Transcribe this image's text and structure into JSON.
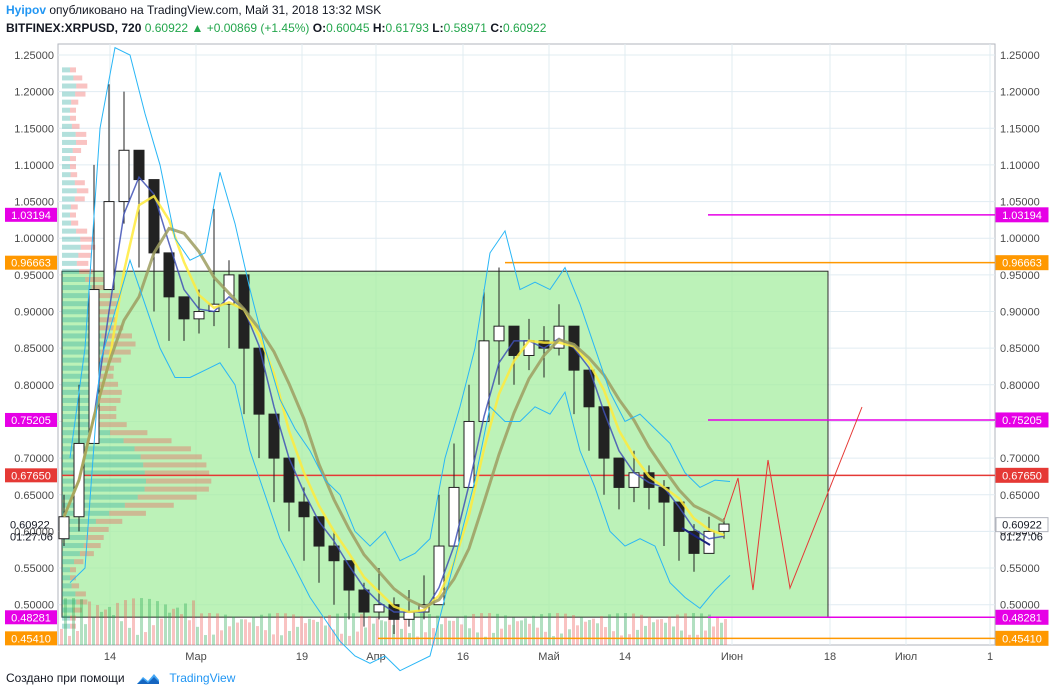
{
  "header": {
    "author": "Hyipov",
    "published": "опубликовано на TradingView.com, Май 31, 2018 13:32 MSK",
    "symbol": "BITFINEX:XRPUSD, 720",
    "last": "0.60922",
    "change": "+0.00869 (+1.45%)",
    "o_label": "O:",
    "o_val": "0.60045",
    "h_label": "H:",
    "h_val": "0.61793",
    "l_label": "L:",
    "l_val": "0.58971",
    "c_label": "C:",
    "c_val": "0.60922"
  },
  "footer": {
    "text": "Создано при помощи",
    "brand": "TradingView"
  },
  "colors": {
    "up": "#23a64c",
    "down": "#ef5350",
    "magenta": "#e600e6",
    "orange": "#ff9800",
    "red": "#e53935",
    "zone": "#a5eea0",
    "grid": "#e1ecf2",
    "blue": "#2196f3"
  },
  "chart_data": {
    "type": "candlestick",
    "symbol": "BITFINEX:XRPUSD",
    "timeframe": "720",
    "ylim": [
      0.445,
      1.265
    ],
    "y_ticks": [
      "1.25000",
      "1.20000",
      "1.15000",
      "1.10000",
      "1.05000",
      "1.00000",
      "0.95000",
      "0.90000",
      "0.85000",
      "0.80000",
      "0.75000",
      "0.70000",
      "0.65000",
      "0.60000",
      "0.55000",
      "0.50000"
    ],
    "x_ticks": [
      "14",
      "Мар",
      "19",
      "Апр",
      "16",
      "Май",
      "14",
      "Июн",
      "18",
      "Июл",
      "1"
    ],
    "price_labels": [
      {
        "text": "1.03194",
        "value": 1.03194,
        "color": "#e600e6"
      },
      {
        "text": "0.96663",
        "value": 0.96663,
        "color": "#ff9800"
      },
      {
        "text": "0.75205",
        "value": 0.75205,
        "color": "#e600e6"
      },
      {
        "text": "0.67650",
        "value": 0.6765,
        "color": "#e53935"
      },
      {
        "text": "0.60922",
        "value": 0.60922,
        "color": "#ffffff",
        "text_color": "#131722"
      },
      {
        "text": "0.48281",
        "value": 0.48281,
        "color": "#e600e6"
      },
      {
        "text": "0.45410",
        "value": 0.4541,
        "color": "#ff9800"
      }
    ],
    "countdown": "01:27:06",
    "close": [
      0.62,
      0.72,
      0.93,
      1.05,
      1.12,
      1.08,
      0.98,
      0.92,
      0.89,
      0.9,
      0.91,
      0.95,
      0.85,
      0.76,
      0.7,
      0.64,
      0.62,
      0.58,
      0.56,
      0.52,
      0.49,
      0.5,
      0.48,
      0.49,
      0.5,
      0.58,
      0.66,
      0.75,
      0.86,
      0.88,
      0.84,
      0.86,
      0.85,
      0.88,
      0.82,
      0.77,
      0.7,
      0.66,
      0.68,
      0.66,
      0.64,
      0.6,
      0.57,
      0.6,
      0.61
    ],
    "high": [
      0.65,
      0.8,
      1.1,
      1.21,
      1.2,
      1.12,
      1.05,
      0.95,
      0.92,
      0.93,
      1.04,
      0.97,
      0.88,
      0.8,
      0.73,
      0.69,
      0.66,
      0.62,
      0.6,
      0.55,
      0.53,
      0.55,
      0.51,
      0.52,
      0.54,
      0.65,
      0.72,
      0.8,
      0.93,
      0.96,
      0.88,
      0.89,
      0.88,
      0.91,
      0.86,
      0.8,
      0.74,
      0.7,
      0.71,
      0.69,
      0.67,
      0.63,
      0.61,
      0.62,
      0.618
    ],
    "low": [
      0.58,
      0.6,
      0.88,
      0.95,
      1.02,
      0.96,
      0.9,
      0.86,
      0.86,
      0.87,
      0.88,
      0.85,
      0.76,
      0.7,
      0.64,
      0.6,
      0.56,
      0.53,
      0.5,
      0.48,
      0.47,
      0.48,
      0.46,
      0.47,
      0.48,
      0.56,
      0.64,
      0.72,
      0.82,
      0.8,
      0.8,
      0.82,
      0.81,
      0.84,
      0.76,
      0.71,
      0.65,
      0.63,
      0.64,
      0.63,
      0.58,
      0.56,
      0.545,
      0.57,
      0.59
    ],
    "levels": [
      {
        "value": 1.03194,
        "color": "#e600e6"
      },
      {
        "value": 0.96663,
        "color": "#ff9800"
      },
      {
        "value": 0.75205,
        "color": "#e600e6"
      },
      {
        "value": 0.6765,
        "color": "#e53935"
      },
      {
        "value": 0.48281,
        "color": "#e600e6"
      },
      {
        "value": 0.4541,
        "color": "#ff9800"
      }
    ],
    "rectangle": {
      "top": 0.955,
      "bottom": 0.483
    }
  }
}
